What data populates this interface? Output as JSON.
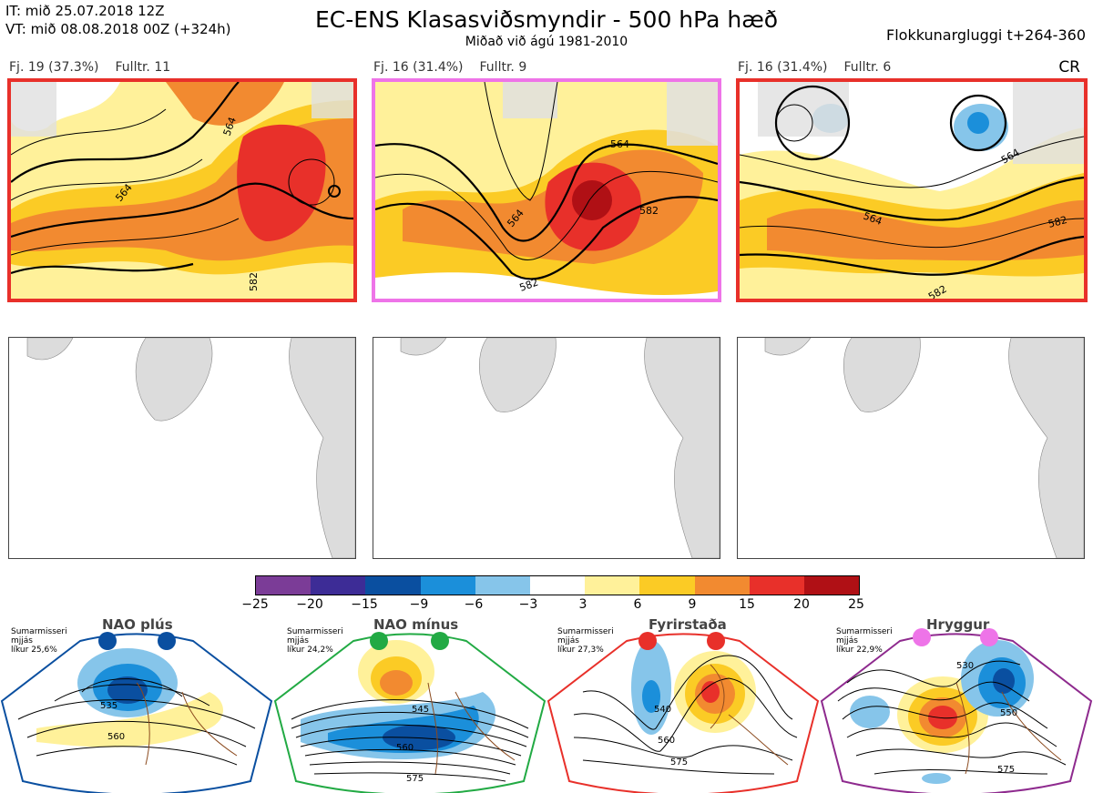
{
  "header": {
    "it_line": "IT: mið 25.07.2018 12Z",
    "vt_line": "VT: mið 08.08.2018 00Z  (+324h)",
    "title": "EC-ENS Klasasviðsmyndir - 500 hPa hæð",
    "subtitle": "Miðað við ágú 1981-2010",
    "window": "Flokkunargluggi t+264-360",
    "code": "CR"
  },
  "panels": [
    {
      "count_label": "Fj. 19 (37.3%)",
      "rep_label": "Fulltr. 11",
      "border_color": "#e8302a",
      "contours": [
        "564",
        "564",
        "582"
      ]
    },
    {
      "count_label": "Fj. 16 (31.4%)",
      "rep_label": "Fulltr. 9",
      "border_color": "#ee74e8",
      "contours": [
        "564",
        "564",
        "582",
        "582"
      ]
    },
    {
      "count_label": "Fj. 16 (31.4%)",
      "rep_label": "Fulltr. 6",
      "border_color": "#e8302a",
      "contours": [
        "564",
        "564",
        "582",
        "582"
      ]
    }
  ],
  "colorbar": {
    "colors": [
      "#7b3c97",
      "#3d2c96",
      "#0a4fa0",
      "#1b8fda",
      "#86c5ea",
      "#ffffff",
      "#fff19a",
      "#fbcb25",
      "#f28a30",
      "#e8302a",
      "#b01015"
    ],
    "labels": [
      "−25",
      "−20",
      "−15",
      "−9",
      "−6",
      "−3",
      "3",
      "6",
      "9",
      "15",
      "20",
      "25"
    ]
  },
  "regimes": [
    {
      "name": "NAO plús",
      "season": "Sumarmisseri",
      "line2": "mjjás",
      "prob": "líkur 25,6%",
      "color": "#0a4fa0",
      "contours": [
        "535",
        "560"
      ]
    },
    {
      "name": "NAO mínus",
      "season": "Sumarmisseri",
      "line2": "mjjás",
      "prob": "líkur 24,2%",
      "color": "#22aa44",
      "contours": [
        "545",
        "560",
        "575"
      ]
    },
    {
      "name": "Fyrirstaða",
      "season": "Sumarmisseri",
      "line2": "mjjás",
      "prob": "líkur 27,3%",
      "color": "#e8302a",
      "contours": [
        "540",
        "560",
        "575"
      ]
    },
    {
      "name": "Hryggur",
      "season": "Sumarmisseri",
      "line2": "mjjás",
      "prob": "líkur 22,9%",
      "color": "#ee74e8",
      "contours": [
        "530",
        "550",
        "575"
      ]
    }
  ]
}
